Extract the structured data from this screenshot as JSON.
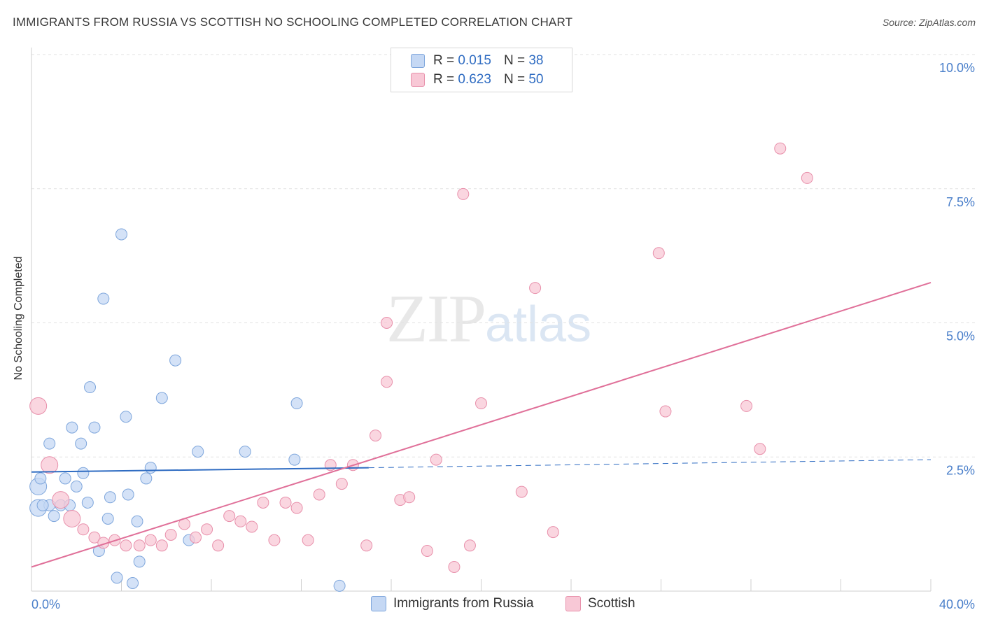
{
  "header": {
    "title": "IMMIGRANTS FROM RUSSIA VS SCOTTISH NO SCHOOLING COMPLETED CORRELATION CHART",
    "source": "Source: ZipAtlas.com"
  },
  "watermark": {
    "zip": "ZIP",
    "atlas": "atlas"
  },
  "legend": {
    "rows": [
      {
        "r_label": "R =",
        "r_value": "0.015",
        "n_label": "N =",
        "n_value": "38"
      },
      {
        "r_label": "R =",
        "r_value": "0.623",
        "n_label": "N =",
        "n_value": "50"
      }
    ]
  },
  "bottom_legend": {
    "series1": "Immigrants from Russia",
    "series2": "Scottish"
  },
  "colors": {
    "blue_fill": "#c5d8f4",
    "blue_stroke": "#7ea6dc",
    "blue_line": "#2f6cc2",
    "pink_fill": "#f8c8d6",
    "pink_stroke": "#e890ab",
    "pink_line": "#e07099",
    "axis_text": "#4a7fca"
  },
  "chart_data": {
    "type": "scatter",
    "title": "IMMIGRANTS FROM RUSSIA VS SCOTTISH NO SCHOOLING COMPLETED CORRELATION CHART",
    "xlabel": "",
    "ylabel": "No Schooling Completed",
    "xlim": [
      0,
      40
    ],
    "ylim": [
      0,
      10
    ],
    "x_tick_labels": [
      "0.0%",
      "40.0%"
    ],
    "y_ticks": [
      2.5,
      5.0,
      7.5,
      10.0
    ],
    "y_tick_labels": [
      "2.5%",
      "5.0%",
      "7.5%",
      "10.0%"
    ],
    "series": [
      {
        "name": "Immigrants from Russia",
        "R": 0.015,
        "N": 38,
        "points": [
          {
            "x": 0.3,
            "y": 1.95,
            "big": true
          },
          {
            "x": 0.4,
            "y": 2.1
          },
          {
            "x": 0.3,
            "y": 1.55,
            "big": true
          },
          {
            "x": 0.8,
            "y": 1.6
          },
          {
            "x": 0.8,
            "y": 2.75
          },
          {
            "x": 1.0,
            "y": 1.4
          },
          {
            "x": 1.3,
            "y": 1.6
          },
          {
            "x": 1.5,
            "y": 2.1
          },
          {
            "x": 1.7,
            "y": 1.6
          },
          {
            "x": 1.8,
            "y": 3.05
          },
          {
            "x": 2.0,
            "y": 1.95
          },
          {
            "x": 2.2,
            "y": 2.75
          },
          {
            "x": 2.3,
            "y": 2.2
          },
          {
            "x": 2.5,
            "y": 1.65
          },
          {
            "x": 2.6,
            "y": 3.8
          },
          {
            "x": 2.8,
            "y": 3.05
          },
          {
            "x": 3.0,
            "y": 0.75
          },
          {
            "x": 3.2,
            "y": 5.45
          },
          {
            "x": 3.4,
            "y": 1.35
          },
          {
            "x": 3.5,
            "y": 1.75
          },
          {
            "x": 3.8,
            "y": 0.25
          },
          {
            "x": 4.0,
            "y": 6.65
          },
          {
            "x": 4.2,
            "y": 3.25
          },
          {
            "x": 4.3,
            "y": 1.8
          },
          {
            "x": 4.5,
            "y": 0.15
          },
          {
            "x": 4.7,
            "y": 1.3
          },
          {
            "x": 4.8,
            "y": 0.55
          },
          {
            "x": 5.1,
            "y": 2.1
          },
          {
            "x": 5.3,
            "y": 2.3
          },
          {
            "x": 5.8,
            "y": 3.6
          },
          {
            "x": 6.4,
            "y": 4.3
          },
          {
            "x": 7.0,
            "y": 0.95
          },
          {
            "x": 7.4,
            "y": 2.6
          },
          {
            "x": 9.5,
            "y": 2.6
          },
          {
            "x": 11.7,
            "y": 2.45
          },
          {
            "x": 11.8,
            "y": 3.5
          },
          {
            "x": 13.7,
            "y": 0.1
          },
          {
            "x": 0.5,
            "y": 1.6
          }
        ],
        "trend": {
          "x1": 0,
          "y1": 2.22,
          "x2": 15,
          "y2": 2.3,
          "dash_to_x": 40,
          "dash_to_y": 2.45
        }
      },
      {
        "name": "Scottish",
        "R": 0.623,
        "N": 50,
        "points": [
          {
            "x": 0.3,
            "y": 3.45,
            "big": true
          },
          {
            "x": 0.8,
            "y": 2.35,
            "big": true
          },
          {
            "x": 1.3,
            "y": 1.7,
            "big": true
          },
          {
            "x": 1.8,
            "y": 1.35,
            "big": true
          },
          {
            "x": 2.3,
            "y": 1.15
          },
          {
            "x": 2.8,
            "y": 1.0
          },
          {
            "x": 3.2,
            "y": 0.9
          },
          {
            "x": 3.7,
            "y": 0.95
          },
          {
            "x": 4.2,
            "y": 0.85
          },
          {
            "x": 4.8,
            "y": 0.85
          },
          {
            "x": 5.3,
            "y": 0.95
          },
          {
            "x": 5.8,
            "y": 0.85
          },
          {
            "x": 6.2,
            "y": 1.05
          },
          {
            "x": 6.8,
            "y": 1.25
          },
          {
            "x": 7.3,
            "y": 1.0
          },
          {
            "x": 7.8,
            "y": 1.15
          },
          {
            "x": 8.3,
            "y": 0.85
          },
          {
            "x": 8.8,
            "y": 1.4
          },
          {
            "x": 9.3,
            "y": 1.3
          },
          {
            "x": 9.8,
            "y": 1.2
          },
          {
            "x": 10.3,
            "y": 1.65
          },
          {
            "x": 10.8,
            "y": 0.95
          },
          {
            "x": 11.3,
            "y": 1.65
          },
          {
            "x": 11.8,
            "y": 1.55
          },
          {
            "x": 12.3,
            "y": 0.95
          },
          {
            "x": 12.8,
            "y": 1.8
          },
          {
            "x": 13.3,
            "y": 2.35
          },
          {
            "x": 13.8,
            "y": 2.0
          },
          {
            "x": 14.3,
            "y": 2.35
          },
          {
            "x": 14.9,
            "y": 0.85
          },
          {
            "x": 15.3,
            "y": 2.9
          },
          {
            "x": 15.8,
            "y": 5.0
          },
          {
            "x": 15.8,
            "y": 3.9
          },
          {
            "x": 16.4,
            "y": 1.7
          },
          {
            "x": 16.8,
            "y": 1.75
          },
          {
            "x": 17.6,
            "y": 0.75
          },
          {
            "x": 18.0,
            "y": 2.45
          },
          {
            "x": 18.8,
            "y": 0.45
          },
          {
            "x": 19.2,
            "y": 7.4
          },
          {
            "x": 19.5,
            "y": 0.85
          },
          {
            "x": 20.0,
            "y": 3.5
          },
          {
            "x": 21.8,
            "y": 1.85
          },
          {
            "x": 22.4,
            "y": 5.65
          },
          {
            "x": 23.2,
            "y": 1.1
          },
          {
            "x": 27.9,
            "y": 6.3
          },
          {
            "x": 28.2,
            "y": 3.35
          },
          {
            "x": 31.8,
            "y": 3.45
          },
          {
            "x": 32.4,
            "y": 2.65
          },
          {
            "x": 33.3,
            "y": 8.25
          },
          {
            "x": 34.5,
            "y": 7.7
          }
        ],
        "trend": {
          "x1": 0,
          "y1": 0.45,
          "x2": 40,
          "y2": 5.75
        }
      }
    ]
  }
}
